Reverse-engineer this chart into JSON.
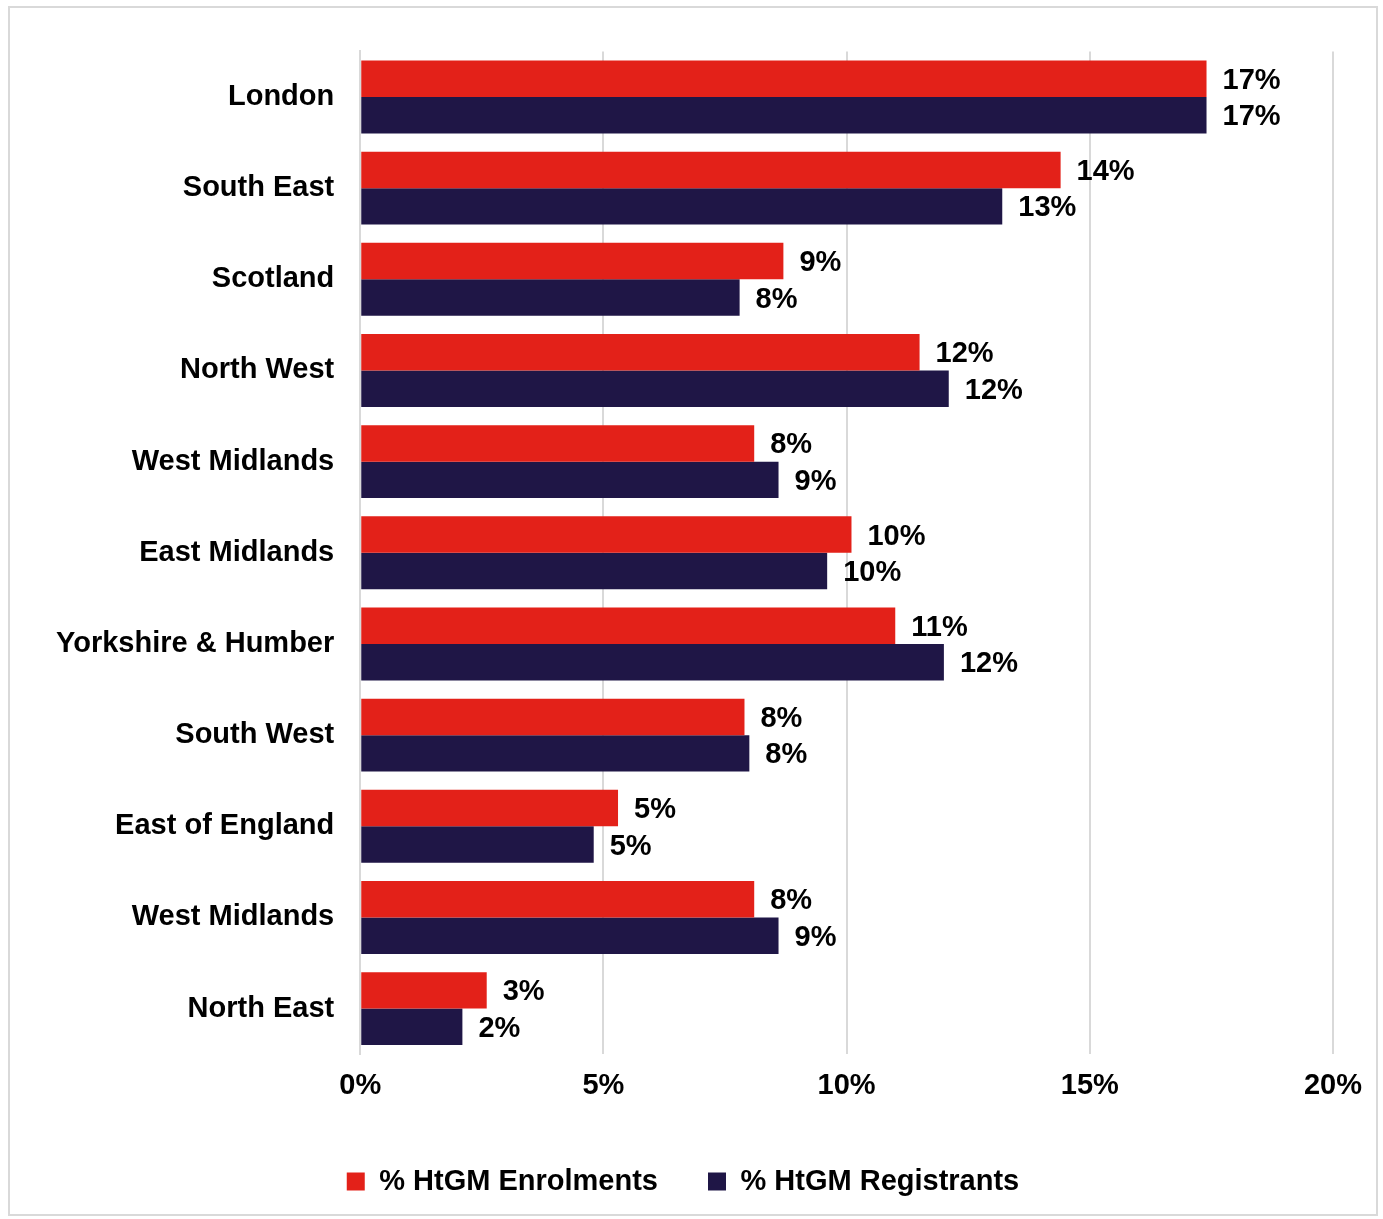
{
  "chart_data": {
    "type": "bar",
    "orientation": "horizontal",
    "categories": [
      "London",
      "South East",
      "Scotland",
      "North West",
      "West Midlands",
      "East Midlands",
      "Yorkshire & Humber",
      "South West",
      "East of England",
      "West Midlands",
      "North East"
    ],
    "series": [
      {
        "name": "% HtGM Enrolments",
        "color": "#e32119",
        "values": [
          17.4,
          14.4,
          8.7,
          11.5,
          8.1,
          10.1,
          11.0,
          7.9,
          5.3,
          8.1,
          2.6
        ],
        "value_labels": [
          "17%",
          "14%",
          "9%",
          "12%",
          "8%",
          "10%",
          "11%",
          "8%",
          "5%",
          "8%",
          "3%"
        ]
      },
      {
        "name": "% HtGM Registrants",
        "color": "#1f1646",
        "values": [
          17.4,
          13.2,
          7.8,
          12.1,
          8.6,
          9.6,
          12.0,
          8.0,
          4.8,
          8.6,
          2.1
        ],
        "value_labels": [
          "17%",
          "13%",
          "8%",
          "12%",
          "9%",
          "10%",
          "12%",
          "8%",
          "5%",
          "9%",
          "2%"
        ]
      }
    ],
    "xlim": [
      0,
      20
    ],
    "xticks": [
      {
        "value": 0,
        "label": "0%"
      },
      {
        "value": 5,
        "label": "5%"
      },
      {
        "value": 10,
        "label": "10%"
      },
      {
        "value": 15,
        "label": "15%"
      },
      {
        "value": 20,
        "label": "20%"
      }
    ],
    "grid": "x",
    "legend": "bottom"
  }
}
